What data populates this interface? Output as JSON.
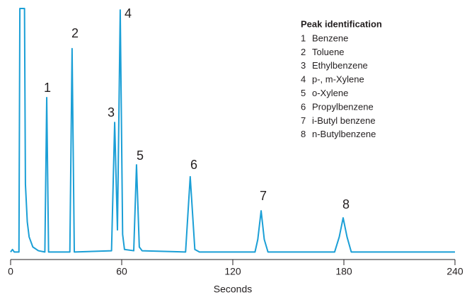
{
  "chart_data": {
    "type": "line",
    "xlabel": "Seconds",
    "x": [
      0,
      1,
      2,
      4.5,
      5,
      7.5,
      8,
      9,
      10,
      12,
      15,
      18.5,
      19.5,
      20.5,
      32,
      33.2,
      34.4,
      54.5,
      56.2,
      57.7,
      59.2,
      60.5,
      61.5,
      66.5,
      68,
      69.5,
      71,
      94.5,
      97,
      99.5,
      102,
      132,
      133.5,
      135.3,
      137,
      139,
      175,
      177.5,
      179.6,
      181.7,
      184,
      240
    ],
    "series": [
      {
        "color": "#1b9fd6",
        "values": [
          3,
          4,
          3,
          3,
          100,
          100,
          30,
          15,
          9,
          5,
          3.5,
          3,
          64.5,
          3,
          3,
          84,
          3,
          3.5,
          54.6,
          11.8,
          99.4,
          10,
          4,
          3.5,
          37.7,
          5,
          3.5,
          3,
          33,
          4,
          3,
          3,
          8,
          19.4,
          8,
          3,
          3,
          9,
          16.6,
          9,
          3,
          3
        ]
      }
    ],
    "xlim": [
      0,
      240
    ],
    "xticks": [
      0,
      60,
      120,
      180,
      240
    ],
    "ylim": [
      0,
      100
    ],
    "annotations": [
      "1",
      "2",
      "3",
      "4",
      "5",
      "6",
      "7",
      "8"
    ],
    "legend": {
      "title": "Peak identification",
      "items": [
        {
          "number": "1",
          "name": "Benzene"
        },
        {
          "number": "2",
          "name": "Toluene"
        },
        {
          "number": "3",
          "name": "Ethylbenzene"
        },
        {
          "number": "4",
          "name": "p-, m-Xylene"
        },
        {
          "number": "5",
          "name": "o-Xylene"
        },
        {
          "number": "6",
          "name": "Propylbenzene"
        },
        {
          "number": "7",
          "name": "i-Butyl benzene"
        },
        {
          "number": "8",
          "name": "n-Butylbenzene"
        }
      ]
    }
  }
}
